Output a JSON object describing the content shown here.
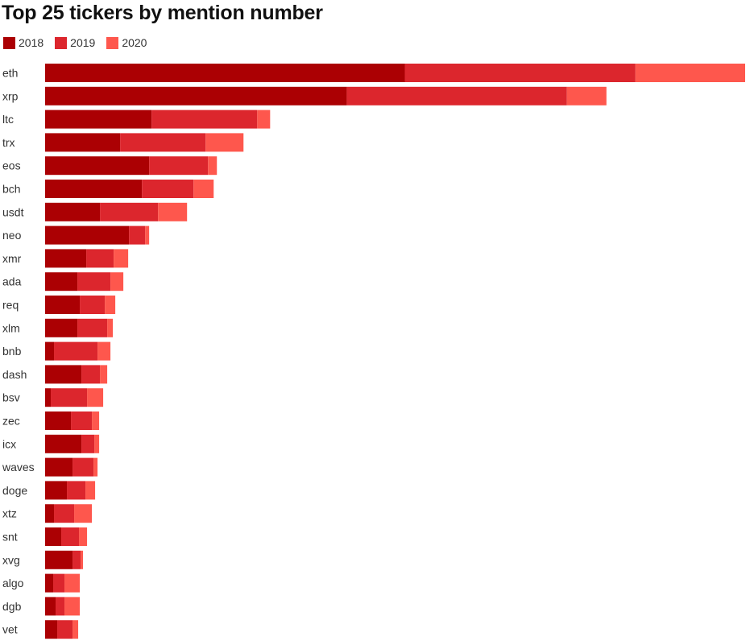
{
  "chart_data": {
    "type": "bar",
    "orientation": "horizontal",
    "stacked": true,
    "title": "Top 25 tickers by mention number",
    "xlabel": "",
    "ylabel": "",
    "categories": [
      "eth",
      "xrp",
      "ltc",
      "trx",
      "eos",
      "bch",
      "usdt",
      "neo",
      "xmr",
      "ada",
      "req",
      "xlm",
      "bnb",
      "dash",
      "bsv",
      "zec",
      "icx",
      "waves",
      "doge",
      "xtz",
      "snt",
      "xvg",
      "algo",
      "dgb",
      "vet"
    ],
    "series": [
      {
        "name": "2018",
        "color": "#ab0003",
        "values": [
          446,
          374,
          132,
          93,
          129,
          120,
          68,
          104,
          51,
          40,
          43,
          40,
          11,
          45,
          7,
          32,
          45,
          34,
          27,
          11,
          20,
          34,
          10,
          13,
          15
        ]
      },
      {
        "name": "2019",
        "color": "#dc262d",
        "values": [
          286,
          273,
          131,
          106,
          73,
          64,
          72,
          20,
          34,
          41,
          31,
          37,
          54,
          23,
          45,
          26,
          16,
          26,
          23,
          25,
          22,
          10,
          14,
          11,
          19
        ]
      },
      {
        "name": "2020",
        "color": "#fe574d",
        "values": [
          136,
          49,
          16,
          47,
          11,
          25,
          36,
          5,
          18,
          16,
          13,
          7,
          16,
          9,
          20,
          9,
          6,
          5,
          12,
          22,
          10,
          3,
          19,
          19,
          7
        ]
      }
    ],
    "xlim": [
      0,
      868
    ],
    "grid": false,
    "legend_position": "top-left"
  }
}
